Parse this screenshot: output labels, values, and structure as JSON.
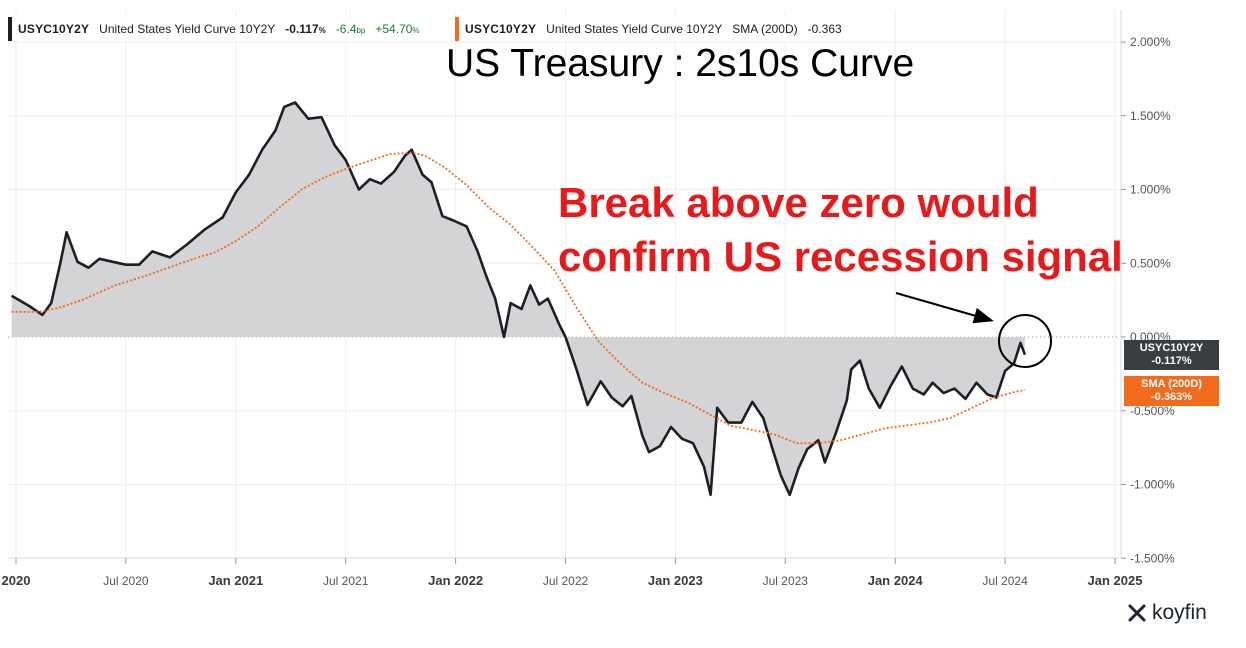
{
  "legend": {
    "primary": {
      "ticker": "USYC10Y2Y",
      "name": "United States Yield Curve 10Y2Y",
      "value": "-0.117",
      "value_unit": "%",
      "change": "-6.4",
      "change_unit": "bp",
      "change_pct": "+54.70",
      "change_pct_unit": "%",
      "color": "#1e1f24"
    },
    "secondary": {
      "ticker": "USYC10Y2Y",
      "name": "United States Yield Curve 10Y2Y",
      "indicator": "SMA (200D)",
      "value": "-0.363",
      "color": "#f26a1b"
    }
  },
  "title": "US Treasury : 2s10s Curve",
  "annotation": {
    "line1": "Break above zero would",
    "line2": "confirm US recession signal",
    "color": "#e8191a"
  },
  "price_tags": {
    "line": {
      "name": "USYC10Y2Y",
      "value": "-0.117%"
    },
    "sma": {
      "name": "SMA (200D)",
      "value": "-0.363%"
    }
  },
  "brand": "koyfin",
  "chart_data": {
    "type": "area",
    "x_ticks": [
      "2020",
      "Jul 2020",
      "Jan 2021",
      "Jul 2021",
      "Jan 2022",
      "Jul 2022",
      "Jan 2023",
      "Jul 2023",
      "Jan 2024",
      "Jul 2024",
      "Jan 2025"
    ],
    "x_tick_bold": [
      true,
      false,
      true,
      false,
      true,
      false,
      true,
      false,
      true,
      false,
      true
    ],
    "y_ticks": [
      "2.000%",
      "1.500%",
      "1.000%",
      "0.500%",
      "0.000%",
      "-0.500%",
      "-1.000%",
      "-1.500%"
    ],
    "y_tick_values": [
      2.0,
      1.5,
      1.0,
      0.5,
      0.0,
      -0.5,
      -1.0,
      -1.5
    ],
    "ylim": [
      -1.5,
      2.0
    ],
    "x_axis_format": "decimal year",
    "xlim": [
      2019.98,
      2025.02
    ],
    "grid": true,
    "zero_line": "dotted",
    "series": [
      {
        "name": "USYC10Y2Y",
        "color": "#1e1f24",
        "fill": "#d4d4d6",
        "points": [
          [
            2019.98,
            0.28
          ],
          [
            2020.06,
            0.21
          ],
          [
            2020.12,
            0.15
          ],
          [
            2020.16,
            0.23
          ],
          [
            2020.2,
            0.49
          ],
          [
            2020.23,
            0.71
          ],
          [
            2020.28,
            0.51
          ],
          [
            2020.33,
            0.47
          ],
          [
            2020.38,
            0.53
          ],
          [
            2020.44,
            0.51
          ],
          [
            2020.5,
            0.49
          ],
          [
            2020.56,
            0.49
          ],
          [
            2020.62,
            0.58
          ],
          [
            2020.7,
            0.54
          ],
          [
            2020.78,
            0.63
          ],
          [
            2020.86,
            0.73
          ],
          [
            2020.94,
            0.81
          ],
          [
            2021.0,
            0.98
          ],
          [
            2021.06,
            1.1
          ],
          [
            2021.12,
            1.27
          ],
          [
            2021.18,
            1.4
          ],
          [
            2021.22,
            1.56
          ],
          [
            2021.27,
            1.59
          ],
          [
            2021.33,
            1.48
          ],
          [
            2021.39,
            1.49
          ],
          [
            2021.45,
            1.3
          ],
          [
            2021.5,
            1.2
          ],
          [
            2021.56,
            1.0
          ],
          [
            2021.61,
            1.07
          ],
          [
            2021.66,
            1.04
          ],
          [
            2021.72,
            1.12
          ],
          [
            2021.77,
            1.23
          ],
          [
            2021.8,
            1.27
          ],
          [
            2021.85,
            1.1
          ],
          [
            2021.89,
            1.05
          ],
          [
            2021.94,
            0.82
          ],
          [
            2021.99,
            0.79
          ],
          [
            2022.05,
            0.75
          ],
          [
            2022.1,
            0.58
          ],
          [
            2022.14,
            0.41
          ],
          [
            2022.18,
            0.26
          ],
          [
            2022.22,
            0.0
          ],
          [
            2022.25,
            0.23
          ],
          [
            2022.3,
            0.19
          ],
          [
            2022.34,
            0.35
          ],
          [
            2022.38,
            0.22
          ],
          [
            2022.42,
            0.26
          ],
          [
            2022.47,
            0.09
          ],
          [
            2022.5,
            0.0
          ],
          [
            2022.55,
            -0.22
          ],
          [
            2022.6,
            -0.46
          ],
          [
            2022.66,
            -0.3
          ],
          [
            2022.71,
            -0.41
          ],
          [
            2022.76,
            -0.47
          ],
          [
            2022.8,
            -0.4
          ],
          [
            2022.85,
            -0.67
          ],
          [
            2022.88,
            -0.78
          ],
          [
            2022.93,
            -0.74
          ],
          [
            2022.98,
            -0.61
          ],
          [
            2023.03,
            -0.69
          ],
          [
            2023.08,
            -0.72
          ],
          [
            2023.13,
            -0.88
          ],
          [
            2023.16,
            -1.07
          ],
          [
            2023.19,
            -0.48
          ],
          [
            2023.24,
            -0.58
          ],
          [
            2023.3,
            -0.58
          ],
          [
            2023.35,
            -0.44
          ],
          [
            2023.4,
            -0.55
          ],
          [
            2023.44,
            -0.75
          ],
          [
            2023.48,
            -0.94
          ],
          [
            2023.52,
            -1.07
          ],
          [
            2023.56,
            -0.89
          ],
          [
            2023.6,
            -0.76
          ],
          [
            2023.65,
            -0.7
          ],
          [
            2023.68,
            -0.85
          ],
          [
            2023.73,
            -0.65
          ],
          [
            2023.78,
            -0.43
          ],
          [
            2023.8,
            -0.22
          ],
          [
            2023.84,
            -0.16
          ],
          [
            2023.88,
            -0.35
          ],
          [
            2023.93,
            -0.48
          ],
          [
            2023.98,
            -0.33
          ],
          [
            2024.03,
            -0.2
          ],
          [
            2024.08,
            -0.35
          ],
          [
            2024.13,
            -0.39
          ],
          [
            2024.17,
            -0.31
          ],
          [
            2024.22,
            -0.38
          ],
          [
            2024.27,
            -0.35
          ],
          [
            2024.32,
            -0.42
          ],
          [
            2024.37,
            -0.31
          ],
          [
            2024.42,
            -0.39
          ],
          [
            2024.46,
            -0.41
          ],
          [
            2024.5,
            -0.23
          ],
          [
            2024.54,
            -0.18
          ],
          [
            2024.57,
            -0.04
          ],
          [
            2024.59,
            -0.12
          ]
        ]
      },
      {
        "name": "SMA (200D)",
        "color": "#f26a1b",
        "dash": true,
        "points": [
          [
            2019.98,
            0.17
          ],
          [
            2020.1,
            0.17
          ],
          [
            2020.2,
            0.2
          ],
          [
            2020.3,
            0.25
          ],
          [
            2020.45,
            0.35
          ],
          [
            2020.6,
            0.42
          ],
          [
            2020.75,
            0.5
          ],
          [
            2020.85,
            0.55
          ],
          [
            2020.9,
            0.57
          ],
          [
            2021.0,
            0.65
          ],
          [
            2021.1,
            0.75
          ],
          [
            2021.2,
            0.88
          ],
          [
            2021.3,
            1.0
          ],
          [
            2021.4,
            1.08
          ],
          [
            2021.5,
            1.14
          ],
          [
            2021.6,
            1.19
          ],
          [
            2021.7,
            1.24
          ],
          [
            2021.8,
            1.25
          ],
          [
            2021.86,
            1.23
          ],
          [
            2021.95,
            1.15
          ],
          [
            2022.05,
            1.03
          ],
          [
            2022.15,
            0.88
          ],
          [
            2022.25,
            0.76
          ],
          [
            2022.35,
            0.61
          ],
          [
            2022.45,
            0.45
          ],
          [
            2022.55,
            0.2
          ],
          [
            2022.65,
            -0.03
          ],
          [
            2022.75,
            -0.18
          ],
          [
            2022.85,
            -0.31
          ],
          [
            2022.95,
            -0.38
          ],
          [
            2023.05,
            -0.44
          ],
          [
            2023.15,
            -0.52
          ],
          [
            2023.25,
            -0.6
          ],
          [
            2023.35,
            -0.63
          ],
          [
            2023.45,
            -0.66
          ],
          [
            2023.55,
            -0.72
          ],
          [
            2023.65,
            -0.72
          ],
          [
            2023.75,
            -0.7
          ],
          [
            2023.85,
            -0.66
          ],
          [
            2023.95,
            -0.62
          ],
          [
            2024.05,
            -0.6
          ],
          [
            2024.15,
            -0.58
          ],
          [
            2024.25,
            -0.55
          ],
          [
            2024.35,
            -0.48
          ],
          [
            2024.45,
            -0.41
          ],
          [
            2024.55,
            -0.37
          ],
          [
            2024.59,
            -0.36
          ]
        ]
      }
    ]
  }
}
